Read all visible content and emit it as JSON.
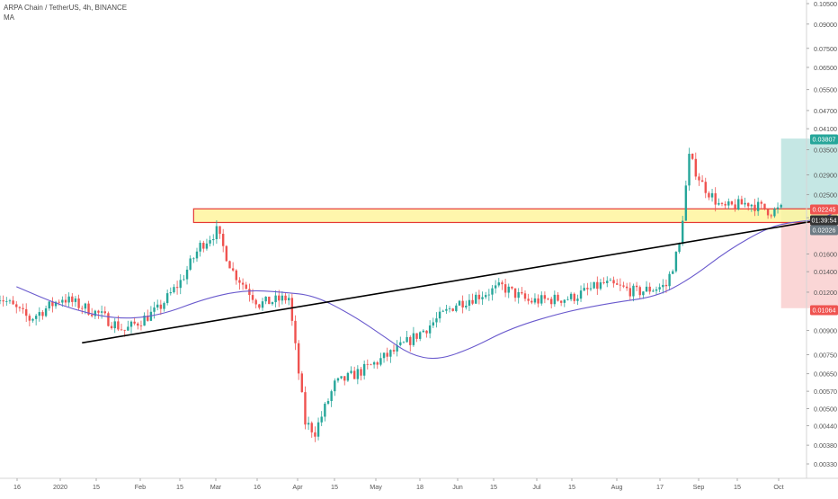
{
  "header": {
    "title": "ARPA Chain / TetherUS, 4h, BINANCE",
    "indicator": "MA"
  },
  "colors": {
    "background": "#ffffff",
    "candle_up": "#26a69a",
    "candle_down": "#ef5350",
    "ma_line": "#6a5acd",
    "trendline": "#000000",
    "zone_fill": "#fff59d",
    "zone_border": "#e53935",
    "profit_zone": "#b2dfdb",
    "loss_zone": "#f8c8c8",
    "label_green": "#26a69a",
    "label_red": "#ef5350",
    "label_dark": "#333333",
    "label_gray": "#6d7b84"
  },
  "chart_data": {
    "type": "candlestick",
    "symbol": "ARPA Chain / TetherUS",
    "timeframe": "4h",
    "exchange": "BINANCE",
    "indicator": "MA",
    "y_scale": "log",
    "ylim": [
      0.003,
      0.11
    ],
    "y_ticks": [
      "0.10500",
      "0.09000",
      "0.07500",
      "0.06500",
      "0.05500",
      "0.04700",
      "0.04100",
      "0.03500",
      "0.02900",
      "0.02500",
      "0.02100",
      "0.01600",
      "0.01400",
      "0.01200",
      "0.00900",
      "0.00750",
      "0.00650",
      "0.00570",
      "0.00500",
      "0.00440",
      "0.00380",
      "0.00330"
    ],
    "x_ticks": [
      "16",
      "2020",
      "15",
      "Feb",
      "15",
      "Mar",
      "16",
      "Apr",
      "15",
      "May",
      "18",
      "Jun",
      "15",
      "Jul",
      "15",
      "Aug",
      "17",
      "Sep",
      "15",
      "Oct"
    ],
    "price_labels": [
      {
        "text": "0.03807",
        "value": 0.03807,
        "style": "green"
      },
      {
        "text": "0.02245",
        "value": 0.02245,
        "style": "red"
      },
      {
        "text": "01:39:54",
        "value": 0.0212,
        "style": "dark"
      },
      {
        "text": "0.02026",
        "value": 0.02026,
        "style": "gray"
      },
      {
        "text": "0.01064",
        "value": 0.01064,
        "style": "red"
      }
    ],
    "ohlc_waypoints": [
      {
        "date": "Dec 10",
        "close": 0.0118
      },
      {
        "date": "Dec 20",
        "close": 0.0098
      },
      {
        "date": "Dec 30",
        "close": 0.0115
      },
      {
        "date": "Jan 10",
        "close": 0.0102
      },
      {
        "date": "Jan 18",
        "close": 0.009
      },
      {
        "date": "Jan 28",
        "close": 0.0105
      },
      {
        "date": "Feb 04",
        "close": 0.013
      },
      {
        "date": "Feb 10",
        "close": 0.017
      },
      {
        "date": "Feb 15",
        "close": 0.019
      },
      {
        "date": "Feb 20",
        "close": 0.014
      },
      {
        "date": "Feb 28",
        "close": 0.011
      },
      {
        "date": "Mar 08",
        "close": 0.0115
      },
      {
        "date": "Mar 13",
        "close": 0.0045
      },
      {
        "date": "Mar 16",
        "close": 0.0042
      },
      {
        "date": "Mar 22",
        "close": 0.006
      },
      {
        "date": "Apr 01",
        "close": 0.0068
      },
      {
        "date": "Apr 10",
        "close": 0.0078
      },
      {
        "date": "Apr 18",
        "close": 0.009
      },
      {
        "date": "Apr 28",
        "close": 0.011
      },
      {
        "date": "May 12",
        "close": 0.0125
      },
      {
        "date": "May 20",
        "close": 0.0112
      },
      {
        "date": "Jun 02",
        "close": 0.0115
      },
      {
        "date": "Jun 12",
        "close": 0.0128
      },
      {
        "date": "Jun 22",
        "close": 0.012
      },
      {
        "date": "Jul 01",
        "close": 0.0126
      },
      {
        "date": "Jul 05",
        "close": 0.017
      },
      {
        "date": "Jul 08",
        "close": 0.033
      },
      {
        "date": "Jul 12",
        "close": 0.027
      },
      {
        "date": "Jul 18",
        "close": 0.0225
      },
      {
        "date": "Jul 26",
        "close": 0.0235
      },
      {
        "date": "Aug 02",
        "close": 0.022
      },
      {
        "date": "Aug 05",
        "close": 0.0224
      }
    ],
    "ma_waypoints": [
      {
        "date": "Dec 16",
        "value": 0.0125
      },
      {
        "date": "Dec 30",
        "value": 0.0108
      },
      {
        "date": "Jan 14",
        "value": 0.0098
      },
      {
        "date": "Jan 28",
        "value": 0.01
      },
      {
        "date": "Feb 12",
        "value": 0.0115
      },
      {
        "date": "Feb 24",
        "value": 0.0122
      },
      {
        "date": "Mar 06",
        "value": 0.012
      },
      {
        "date": "Mar 16",
        "value": 0.0117
      },
      {
        "date": "Mar 28",
        "value": 0.01
      },
      {
        "date": "Apr 06",
        "value": 0.0086
      },
      {
        "date": "Apr 14",
        "value": 0.0075
      },
      {
        "date": "Apr 22",
        "value": 0.0072
      },
      {
        "date": "May 02",
        "value": 0.0078
      },
      {
        "date": "May 15",
        "value": 0.0092
      },
      {
        "date": "Jun 01",
        "value": 0.0104
      },
      {
        "date": "Jun 15",
        "value": 0.0111
      },
      {
        "date": "Jun 28",
        "value": 0.0116
      },
      {
        "date": "Jul 08",
        "value": 0.0132
      },
      {
        "date": "Jul 20",
        "value": 0.0165
      },
      {
        "date": "Aug 01",
        "value": 0.0195
      },
      {
        "date": "Aug 08",
        "value": 0.0203
      },
      {
        "date": "Aug 15",
        "value": 0.0206
      },
      {
        "date": "Aug 24",
        "value": 0.0222
      },
      {
        "date": "Sep 02",
        "value": 0.03
      },
      {
        "date": "Sep 06",
        "value": 0.038
      }
    ],
    "drawings": {
      "trendline": {
        "from": {
          "date": "Jan 05",
          "value": 0.0082
        },
        "to": {
          "date": "Sep 07",
          "value": 0.0225
        }
      },
      "resistance_zone": {
        "from_date": "Feb 08",
        "to_date": "Aug 30",
        "top": 0.02245,
        "bottom": 0.02026
      },
      "position": {
        "from_date": "Aug 05",
        "to_date": "Sep 07",
        "entry": 0.02026,
        "target": 0.03807,
        "stop": 0.01064
      }
    }
  }
}
